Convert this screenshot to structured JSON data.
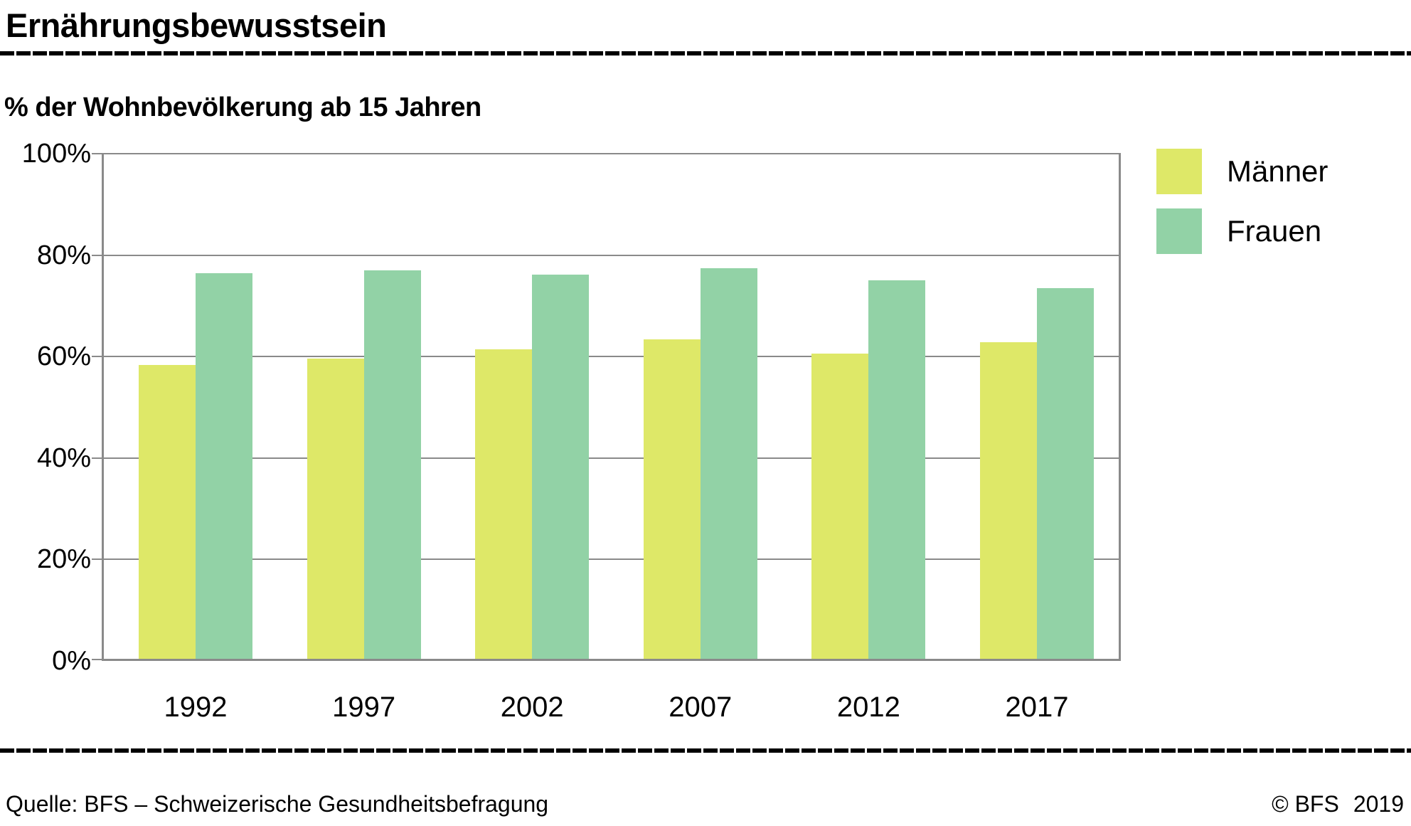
{
  "header": {
    "title": "Ernährungsbewusstsein"
  },
  "subtitle": {
    "text": "% der Wohnbevölkerung ab 15 Jahren"
  },
  "legend": {
    "items": [
      {
        "label": "Männer",
        "color": "#dee868"
      },
      {
        "label": "Frauen",
        "color": "#92d2a6"
      }
    ]
  },
  "footer": {
    "source": "Quelle: BFS – Schweizerische Gesundheitsbefragung",
    "copyright": "© BFS",
    "year": "2019"
  },
  "chart_data": {
    "type": "bar",
    "title": "Ernährungsbewusstsein",
    "subtitle": "% der Wohnbevölkerung ab 15 Jahren",
    "categories": [
      "1992",
      "1997",
      "2002",
      "2007",
      "2012",
      "2017"
    ],
    "series": [
      {
        "name": "Männer",
        "color": "#dee868",
        "values": [
          58.4,
          59.6,
          61.5,
          63.4,
          60.6,
          62.9
        ]
      },
      {
        "name": "Frauen",
        "color": "#92d2a6",
        "values": [
          76.4,
          77.0,
          76.1,
          77.4,
          75.0,
          73.5
        ]
      }
    ],
    "ylabel": "% der Wohnbevölkerung ab 15 Jahren",
    "ylim": [
      0,
      100
    ],
    "y_ticks": [
      0,
      20,
      40,
      60,
      80,
      100
    ],
    "y_tick_labels": [
      "0%",
      "20%",
      "40%",
      "60%",
      "80%",
      "100%"
    ],
    "grid": true,
    "gridline_color": "#8a8a8a",
    "legend_position": "top-right",
    "source": "Quelle: BFS – Schweizerische Gesundheitsbefragung",
    "copyright": "© BFS 2019"
  }
}
